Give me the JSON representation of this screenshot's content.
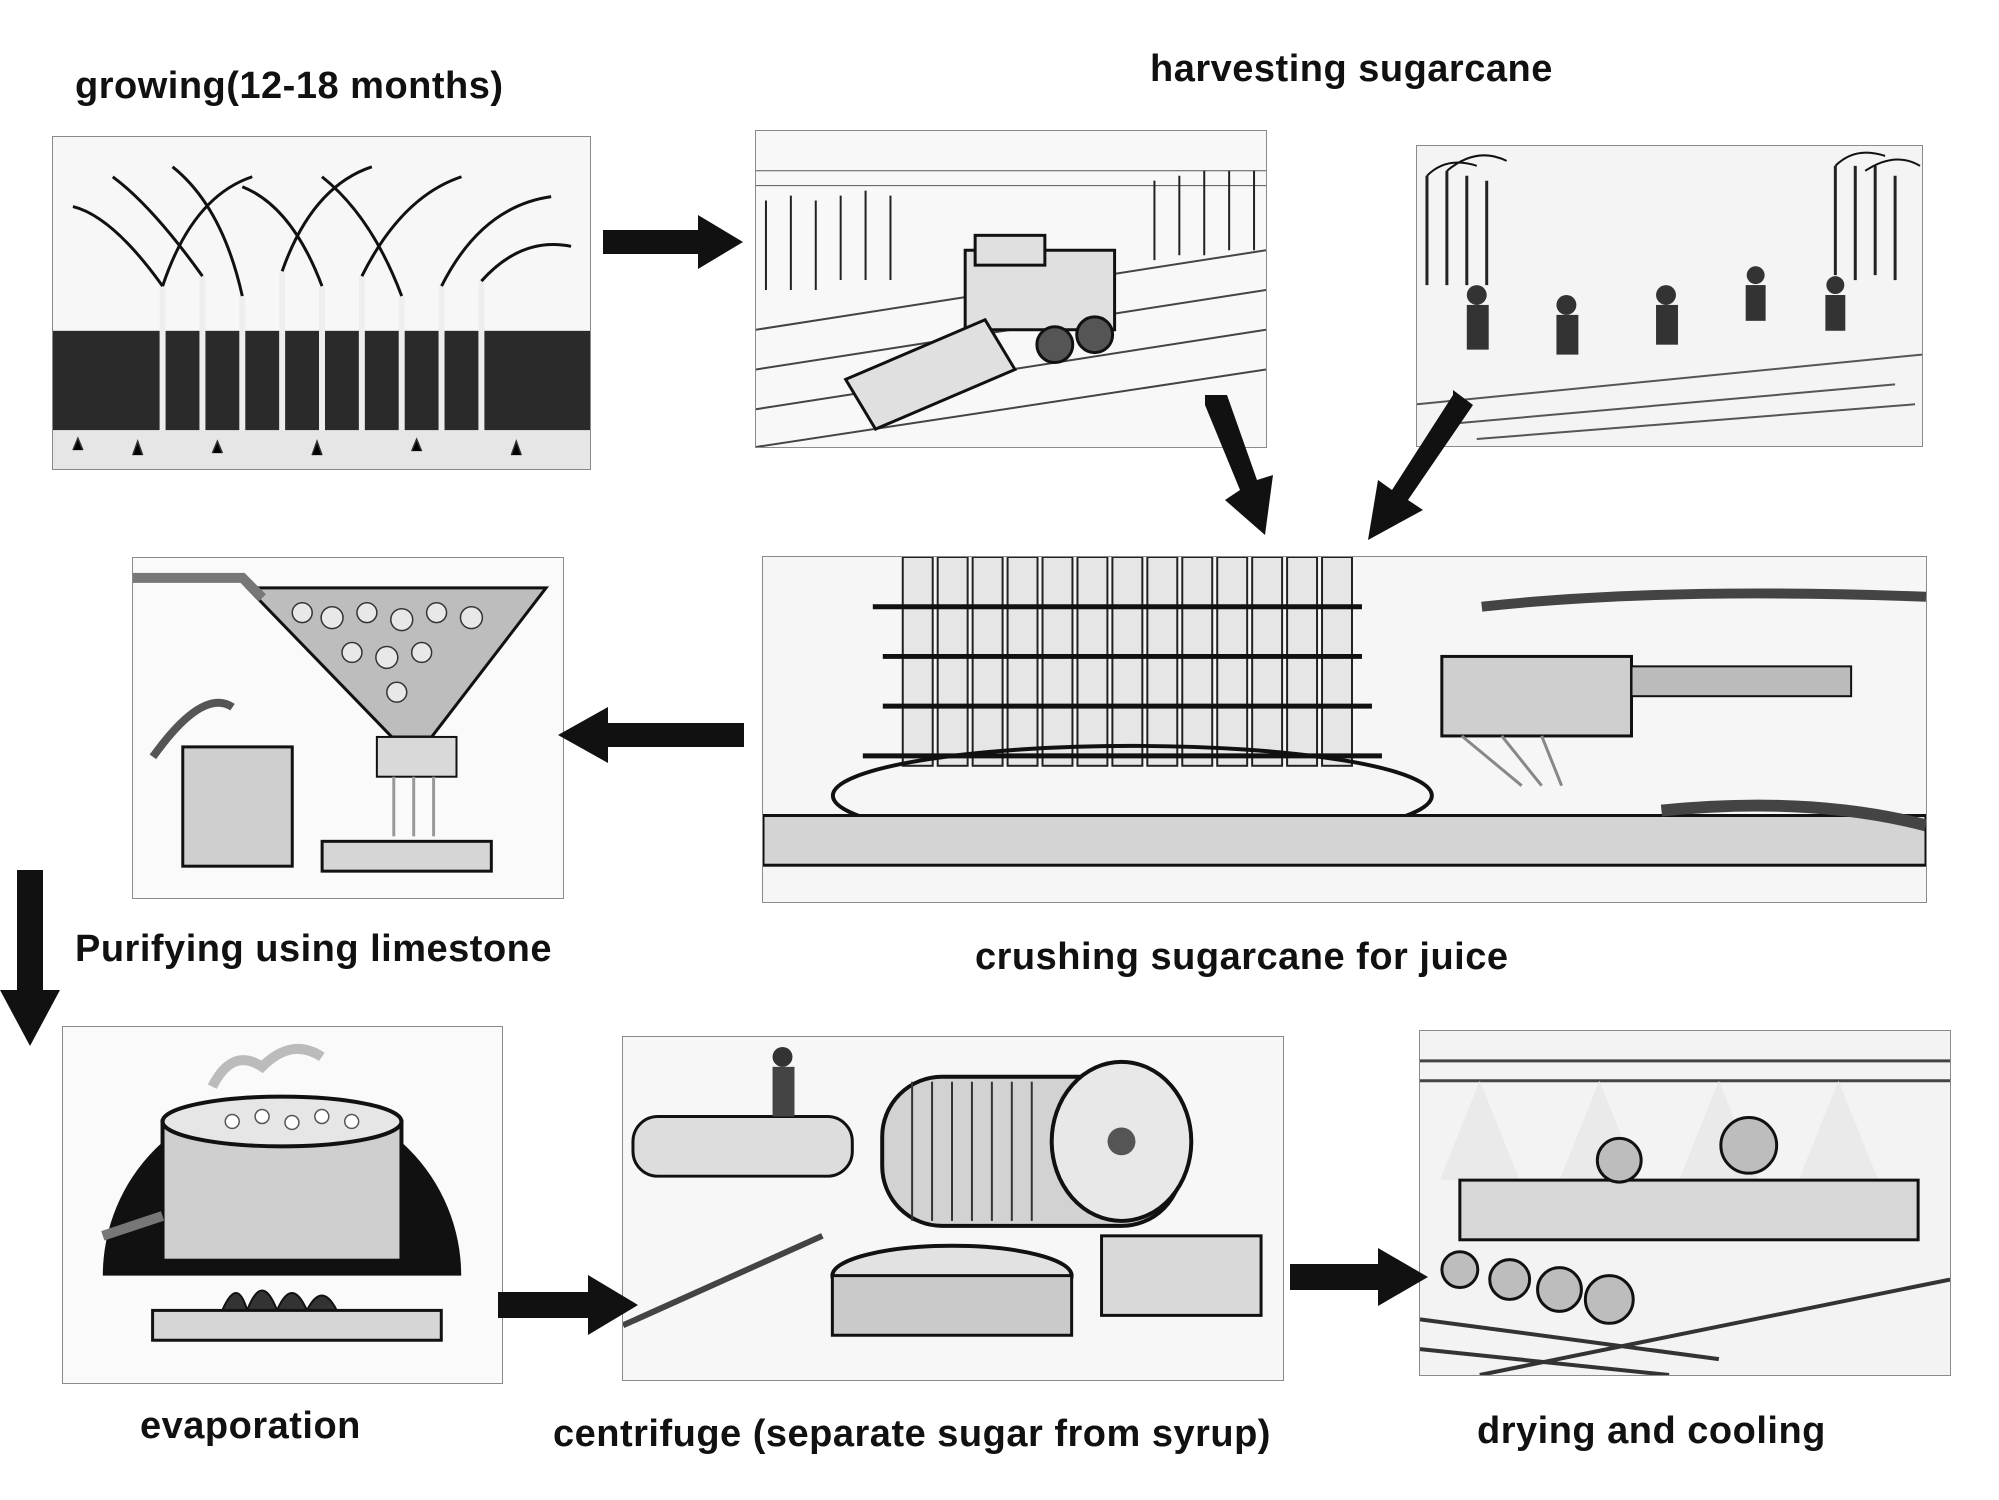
{
  "steps": {
    "growing": "growing(12-18 months)",
    "harvesting": "harvesting sugarcane",
    "crushing": "crushing sugarcane for juice",
    "purifying": "Purifying using limestone",
    "evaporation": "evaporation",
    "centrifuge": "centrifuge (separate sugar from syrup)",
    "drying": "drying and cooling"
  },
  "icons": {
    "growing": "sugarcane-field-illustration",
    "harvesting_machine": "harvester-machine-illustration",
    "harvesting_manual": "field-workers-illustration",
    "crushing": "crushing-mill-illustration",
    "purifying": "limestone-filter-illustration",
    "evaporation": "boiling-pot-illustration",
    "centrifuge": "centrifuge-machine-illustration",
    "drying": "drying-conveyor-illustration",
    "arrow": "black-arrow-icon"
  },
  "colors": {
    "ink": "#111111",
    "frame": "#8a8a8a",
    "background": "#ffffff"
  }
}
